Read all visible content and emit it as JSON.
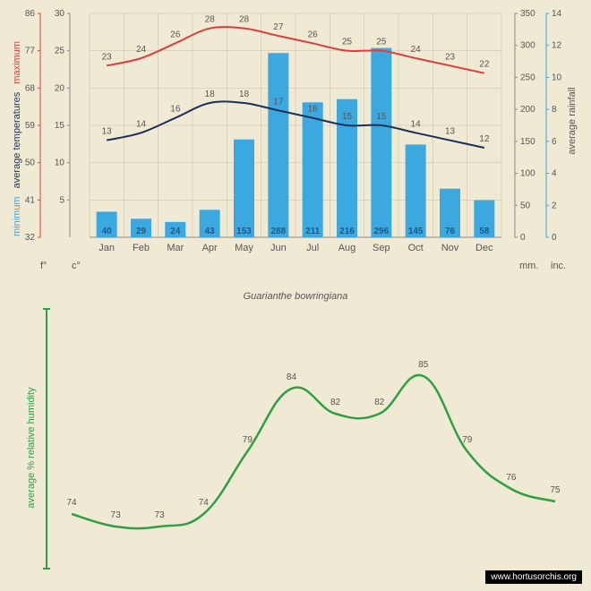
{
  "title": "Guarianthe bowringiana",
  "watermark": "www.hortusorchis.org",
  "months": [
    "Jan",
    "Feb",
    "Mar",
    "Apr",
    "May",
    "Jun",
    "Jul",
    "Aug",
    "Sep",
    "Oct",
    "Nov",
    "Dec"
  ],
  "top_chart": {
    "background": "#f5efd9",
    "plot_bg": "#f5efd9",
    "grid_color": "#c5bea8",
    "bar_color": "#3ca8e0",
    "max_line_color": "#e03c3c",
    "min_line_color": "#1a2f5a",
    "axes": {
      "f": {
        "label": "f°",
        "ticks": [
          32,
          41,
          50,
          59,
          68,
          77,
          86
        ],
        "color": "#555"
      },
      "c": {
        "label": "c°",
        "ticks": [
          5,
          10,
          15,
          20,
          25,
          30
        ],
        "color": "#555",
        "range": [
          0,
          30
        ]
      },
      "mm": {
        "label": "mm.",
        "ticks": [
          0,
          50,
          100,
          150,
          200,
          250,
          300,
          350
        ],
        "color": "#555",
        "range": [
          0,
          350
        ]
      },
      "inc": {
        "label": "inc.",
        "ticks": [
          0,
          2,
          4,
          6,
          8,
          10,
          12,
          14
        ],
        "color": "#555"
      }
    },
    "side_label_min": "minimum",
    "side_label_avg": "average temperatures",
    "side_label_max": "maximum",
    "side_label_rain": "average rainfall",
    "max_c": [
      23,
      24,
      26,
      28,
      28,
      27,
      26,
      25,
      25,
      24,
      23,
      22
    ],
    "min_c": [
      13,
      14,
      16,
      18,
      18,
      17,
      16,
      15,
      15,
      14,
      13,
      12
    ],
    "rainfall_mm": [
      40,
      29,
      24,
      43,
      153,
      288,
      211,
      216,
      296,
      145,
      76,
      58
    ]
  },
  "bottom_chart": {
    "line_color": "#2ea043",
    "axis_color": "#2ea043",
    "side_label": "average %  relative humidity",
    "humidity": [
      74,
      73,
      73,
      74,
      79,
      84,
      82,
      82,
      85,
      79,
      76,
      75
    ],
    "yrange": [
      70,
      90
    ]
  }
}
